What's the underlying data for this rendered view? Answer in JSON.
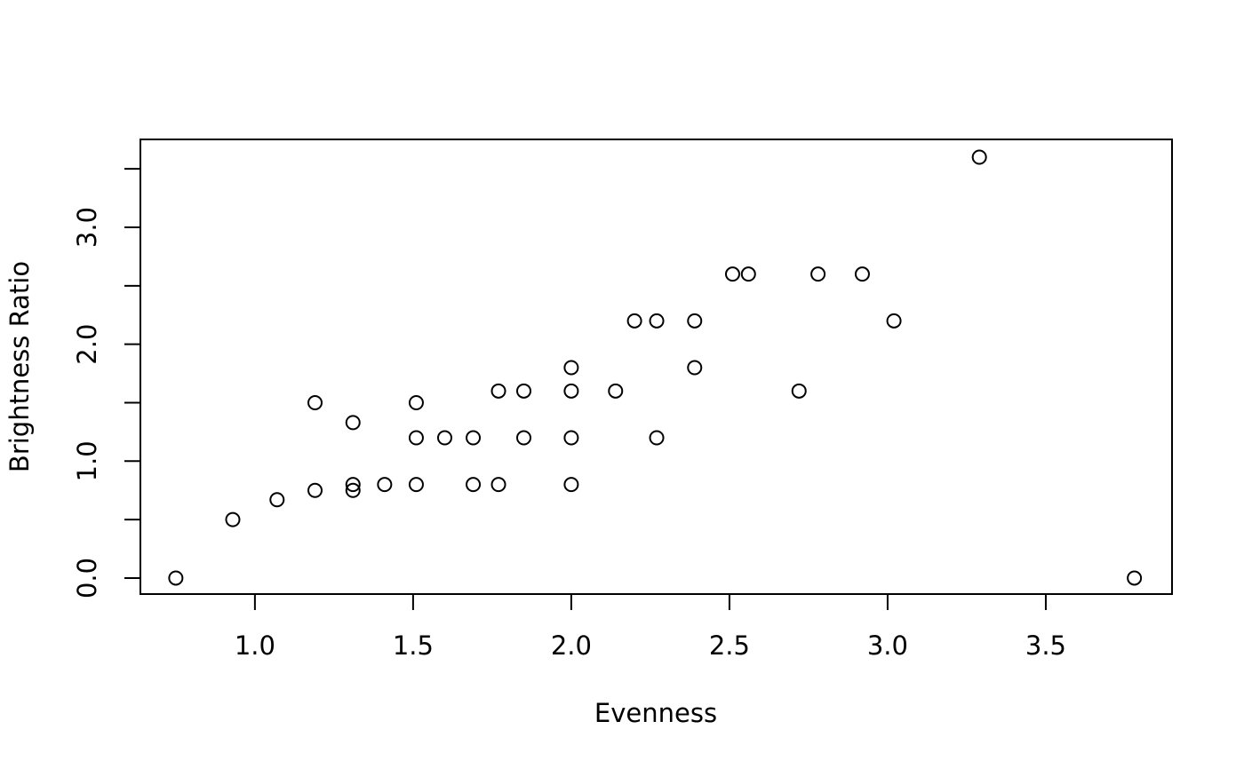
{
  "chart_data": {
    "type": "scatter",
    "x_label": "Evenness",
    "y_label": "Brightness Ratio",
    "color": "#000000",
    "x": [
      0.75,
      0.93,
      1.07,
      1.19,
      1.19,
      1.31,
      1.31,
      1.31,
      1.41,
      1.51,
      1.51,
      1.51,
      1.6,
      1.69,
      1.69,
      1.77,
      1.77,
      1.85,
      1.85,
      2.0,
      2.0,
      2.0,
      2.0,
      2.14,
      2.2,
      2.27,
      2.27,
      2.39,
      2.39,
      2.51,
      2.56,
      2.72,
      2.78,
      2.92,
      3.02,
      3.29,
      3.78
    ],
    "values": [
      0,
      0.5,
      0.67,
      0.75,
      1.5,
      1.33,
      0.8,
      0.75,
      0.8,
      0.8,
      1.2,
      1.5,
      1.2,
      1.2,
      0.8,
      0.8,
      1.6,
      1.6,
      1.2,
      0.8,
      1.2,
      1.6,
      1.8,
      1.6,
      2.2,
      2.2,
      1.2,
      2.2,
      1.8,
      2.6,
      2.6,
      1.6,
      2.6,
      2.6,
      2.2,
      3.6,
      0
    ],
    "xlim": [
      0.638,
      3.899
    ],
    "ylim": [
      -0.137,
      3.752
    ],
    "xticks": [
      {
        "value": 1,
        "label": "1.0"
      },
      {
        "value": 1.5,
        "label": "1.5"
      },
      {
        "value": 2,
        "label": "2.0"
      },
      {
        "value": 2.5,
        "label": "2.5"
      },
      {
        "value": 3,
        "label": "3.0"
      },
      {
        "value": 3.5,
        "label": "3.5"
      }
    ],
    "yticks": [
      {
        "value": 0,
        "label": "0.0"
      },
      {
        "value": 0.5,
        "label": null
      },
      {
        "value": 1,
        "label": "1.0"
      },
      {
        "value": 1.5,
        "label": null
      },
      {
        "value": 2,
        "label": "2.0"
      },
      {
        "value": 2.5,
        "label": null
      },
      {
        "value": 3,
        "label": "3.0"
      },
      {
        "value": 3.5,
        "label": null
      }
    ],
    "grid": false
  }
}
